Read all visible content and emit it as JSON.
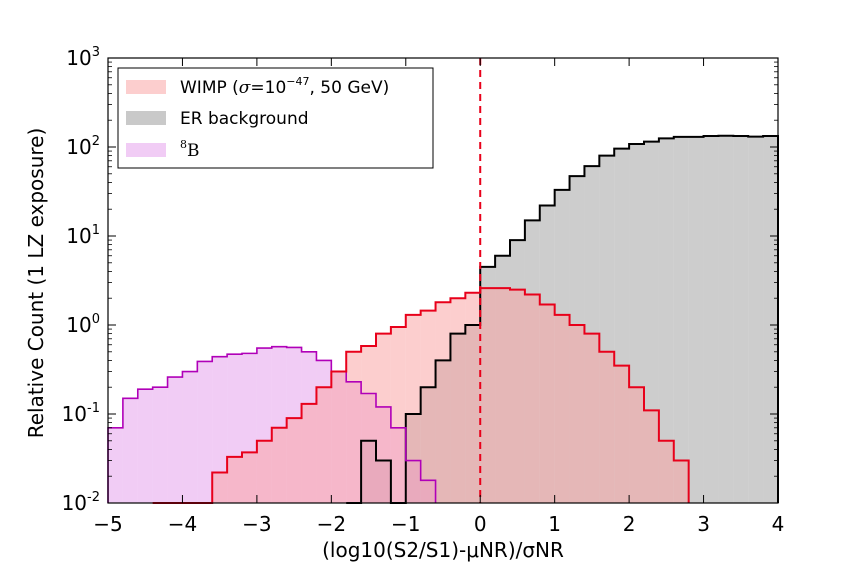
{
  "chart_data": {
    "type": "area",
    "title": "",
    "xlabel": "(log10(S2/S1)-μNR)/σNR",
    "ylabel": "Relative Count (1 LZ exposure)",
    "xlim": [
      -5,
      4
    ],
    "ylim": [
      0.01,
      1000
    ],
    "yscale": "log",
    "grid": false,
    "legend_position": "top-left",
    "x_ticks": [
      "−5",
      "−4",
      "−3",
      "−2",
      "−1",
      "0",
      "1",
      "2",
      "3",
      "4"
    ],
    "y_ticks": [
      {
        "base": "10",
        "exp": "-2"
      },
      {
        "base": "10",
        "exp": "-1"
      },
      {
        "base": "10",
        "exp": "0"
      },
      {
        "base": "10",
        "exp": "1"
      },
      {
        "base": "10",
        "exp": "2"
      },
      {
        "base": "10",
        "exp": "3"
      }
    ],
    "vline": {
      "x": 0,
      "color": "#e8001a",
      "style": "dashed"
    },
    "bin_width": 0.2,
    "series": [
      {
        "key": "er",
        "name": "ER background",
        "fill": "#9c9c9c",
        "edge": "#000000",
        "x": [
          -1.7,
          -1.5,
          -1.3,
          -1.1,
          -0.9,
          -0.7,
          -0.5,
          -0.3,
          -0.1,
          0.1,
          0.3,
          0.5,
          0.7,
          0.9,
          1.1,
          1.3,
          1.5,
          1.7,
          1.9,
          2.1,
          2.3,
          2.5,
          2.7,
          2.9,
          3.1,
          3.3,
          3.5,
          3.7,
          3.9
        ],
        "values": [
          0.0025,
          0.05,
          0.03,
          0.0025,
          0.1,
          0.2,
          0.4,
          0.8,
          1.0,
          4.5,
          6.0,
          9.0,
          15.0,
          22.0,
          33.0,
          47.0,
          61.0,
          80.0,
          96.0,
          108.0,
          115.0,
          125.0,
          130.0,
          130.0,
          133.0,
          134.0,
          133.0,
          131.0,
          133.0
        ]
      },
      {
        "key": "b8",
        "name": "8B",
        "name_sup": "8",
        "name_main": "B",
        "fill": "#e08fe8",
        "edge": "#b000b8",
        "x": [
          -4.9,
          -4.7,
          -4.5,
          -4.3,
          -4.1,
          -3.9,
          -3.7,
          -3.5,
          -3.3,
          -3.1,
          -2.9,
          -2.7,
          -2.5,
          -2.3,
          -2.1,
          -1.9,
          -1.7,
          -1.5,
          -1.3,
          -1.1,
          -0.9,
          -0.7
        ],
        "values": [
          0.07,
          0.15,
          0.19,
          0.2,
          0.26,
          0.3,
          0.39,
          0.44,
          0.47,
          0.48,
          0.55,
          0.57,
          0.56,
          0.5,
          0.4,
          0.3,
          0.23,
          0.17,
          0.12,
          0.07,
          0.03,
          0.018
        ]
      },
      {
        "key": "wimp",
        "name": "WIMP (σ=10⁻⁴⁷, 50 GeV)",
        "name_pre": "WIMP (",
        "name_sigma": "σ",
        "name_eq": "=10",
        "name_exp": "−47",
        "name_post": ", 50 GeV)",
        "fill": "#f9a5a5",
        "edge": "#e8001a",
        "x": [
          -4.3,
          -4.1,
          -3.9,
          -3.7,
          -3.5,
          -3.3,
          -3.1,
          -2.9,
          -2.7,
          -2.5,
          -2.3,
          -2.1,
          -1.9,
          -1.7,
          -1.5,
          -1.3,
          -1.1,
          -0.9,
          -0.7,
          -0.5,
          -0.3,
          -0.1,
          0.1,
          0.3,
          0.5,
          0.7,
          0.9,
          1.1,
          1.3,
          1.5,
          1.7,
          1.9,
          2.1,
          2.3,
          2.5,
          2.7
        ],
        "values": [
          0.01,
          0.01,
          0.003,
          0.01,
          0.022,
          0.033,
          0.037,
          0.05,
          0.07,
          0.09,
          0.13,
          0.2,
          0.3,
          0.5,
          0.58,
          0.8,
          0.95,
          1.3,
          1.45,
          1.8,
          2.0,
          2.3,
          2.6,
          2.6,
          2.5,
          2.2,
          1.7,
          1.3,
          1.0,
          0.8,
          0.5,
          0.35,
          0.2,
          0.11,
          0.05,
          0.03
        ]
      }
    ]
  }
}
